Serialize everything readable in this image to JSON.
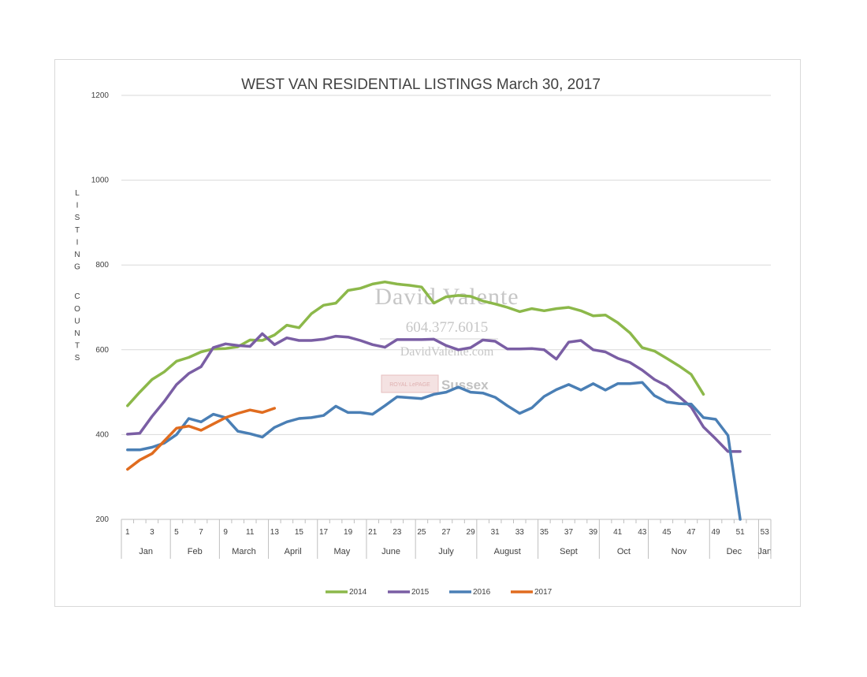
{
  "chart_data": {
    "type": "line",
    "title": "WEST VAN RESIDENTIAL LISTINGS March 30, 2017",
    "ylabel": "LISTING COUNTS",
    "ylim": [
      200,
      1200
    ],
    "yticks": [
      "200",
      "400",
      "600",
      "800",
      "1000",
      "1200"
    ],
    "xlim": [
      1,
      54
    ],
    "xticks": [
      "1",
      "3",
      "5",
      "7",
      "9",
      "11",
      "13",
      "15",
      "17",
      "19",
      "21",
      "23",
      "25",
      "27",
      "29",
      "31",
      "33",
      "35",
      "37",
      "39",
      "41",
      "43",
      "45",
      "47",
      "49",
      "51",
      "53"
    ],
    "months": [
      "Jan",
      "Feb",
      "March",
      "April",
      "May",
      "June",
      "July",
      "August",
      "Sept",
      "Oct",
      "Nov",
      "Dec",
      "Jan"
    ],
    "month_spans": [
      [
        1,
        4
      ],
      [
        5,
        8
      ],
      [
        9,
        12
      ],
      [
        13,
        16
      ],
      [
        17,
        20
      ],
      [
        21,
        24
      ],
      [
        25,
        29
      ],
      [
        30,
        34
      ],
      [
        35,
        39
      ],
      [
        40,
        43
      ],
      [
        44,
        48
      ],
      [
        49,
        52
      ],
      [
        53,
        53
      ]
    ],
    "grid": true,
    "legend_position": "bottom",
    "series": [
      {
        "name": "2014",
        "color": "#8cb84a",
        "x": [
          1,
          2,
          3,
          4,
          5,
          6,
          7,
          8,
          9,
          10,
          11,
          12,
          13,
          14,
          15,
          16,
          17,
          18,
          19,
          20,
          21,
          22,
          23,
          24,
          25,
          26,
          27,
          28,
          29,
          30,
          31,
          32,
          33,
          34,
          35,
          36,
          37,
          38,
          39,
          40,
          41,
          42,
          43,
          44,
          45,
          46,
          47,
          48
        ],
        "values": [
          468,
          500,
          530,
          548,
          573,
          582,
          595,
          602,
          603,
          607,
          623,
          622,
          635,
          658,
          652,
          685,
          705,
          710,
          740,
          745,
          755,
          760,
          755,
          752,
          748,
          710,
          725,
          728,
          726,
          715,
          708,
          700,
          690,
          697,
          692,
          697,
          700,
          692,
          680,
          682,
          664,
          640,
          605,
          597,
          580,
          562,
          542,
          495
        ]
      },
      {
        "name": "2015",
        "color": "#7a5ea4",
        "x": [
          1,
          2,
          3,
          4,
          5,
          6,
          7,
          8,
          9,
          10,
          11,
          12,
          13,
          14,
          15,
          16,
          17,
          18,
          19,
          20,
          21,
          22,
          23,
          24,
          25,
          26,
          27,
          28,
          29,
          30,
          31,
          32,
          33,
          34,
          35,
          36,
          37,
          38,
          39,
          40,
          41,
          42,
          43,
          44,
          45,
          46,
          47,
          48,
          49,
          50,
          51
        ],
        "values": [
          401,
          403,
          443,
          478,
          518,
          544,
          560,
          605,
          614,
          610,
          608,
          638,
          612,
          628,
          622,
          622,
          625,
          632,
          630,
          622,
          612,
          606,
          624,
          624,
          624,
          625,
          610,
          600,
          605,
          623,
          620,
          602,
          602,
          603,
          600,
          578,
          618,
          622,
          600,
          595,
          580,
          570,
          552,
          530,
          515,
          490,
          465,
          418,
          390,
          360,
          360
        ]
      },
      {
        "name": "2016",
        "color": "#4a7fb5",
        "x": [
          1,
          2,
          3,
          4,
          5,
          6,
          7,
          8,
          9,
          10,
          11,
          12,
          13,
          14,
          15,
          16,
          17,
          18,
          19,
          20,
          21,
          22,
          23,
          24,
          25,
          26,
          27,
          28,
          29,
          30,
          31,
          32,
          33,
          34,
          35,
          36,
          37,
          38,
          39,
          40,
          41,
          42,
          43,
          44,
          45,
          46,
          47,
          48,
          49,
          50,
          51
        ],
        "values": [
          364,
          364,
          370,
          380,
          400,
          438,
          430,
          448,
          440,
          408,
          402,
          394,
          417,
          430,
          438,
          440,
          445,
          467,
          452,
          452,
          448,
          468,
          489,
          487,
          485,
          495,
          500,
          512,
          500,
          498,
          488,
          468,
          450,
          463,
          490,
          506,
          518,
          505,
          520,
          505,
          520,
          520,
          523,
          492,
          477,
          473,
          472,
          440,
          436,
          398,
          200
        ]
      },
      {
        "name": "2017",
        "color": "#e06c1f",
        "x": [
          1,
          2,
          3,
          4,
          5,
          6,
          7,
          8,
          9,
          10,
          11,
          12,
          13
        ],
        "values": [
          318,
          340,
          355,
          385,
          415,
          420,
          410,
          425,
          440,
          450,
          458,
          452,
          462
        ]
      }
    ]
  },
  "watermark": {
    "name": "David Valente",
    "phone": "604.377.6015",
    "website": "DavidValente.com",
    "brand_small": "ROYAL LePAGE",
    "brand": "Sussex"
  }
}
